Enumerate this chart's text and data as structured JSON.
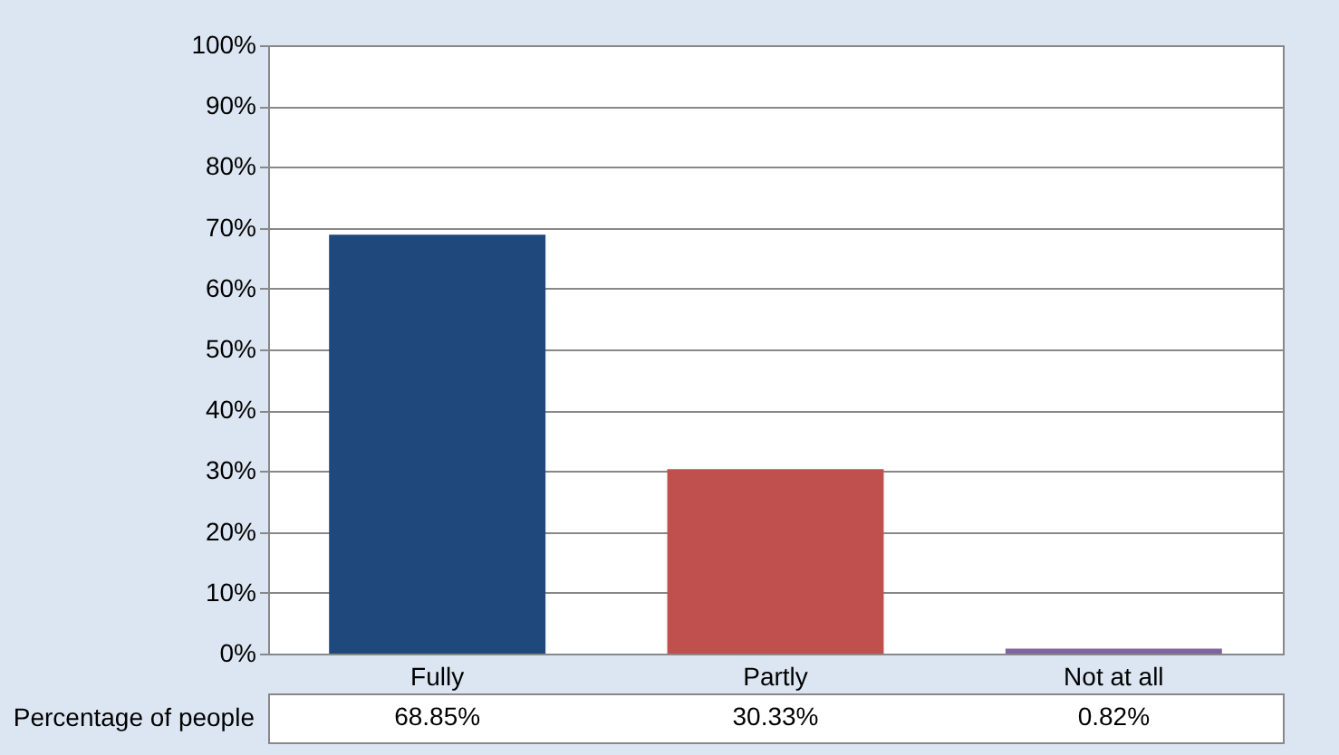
{
  "chart_data": {
    "type": "bar",
    "categories": [
      "Fully",
      "Partly",
      "Not at all"
    ],
    "series": [
      {
        "name": "Percentage of people",
        "colors": [
          "#1f497d",
          "#c0504d",
          "#8064a2"
        ],
        "values": [
          68.85,
          30.33,
          0.82
        ],
        "value_labels": [
          "68.85%",
          "30.33%",
          "0.82%"
        ]
      }
    ],
    "ylim": [
      0,
      100
    ],
    "yticks": [
      {
        "value": 0,
        "label": "0%"
      },
      {
        "value": 10,
        "label": "10%"
      },
      {
        "value": 20,
        "label": "20%"
      },
      {
        "value": 30,
        "label": "30%"
      },
      {
        "value": 40,
        "label": "40%"
      },
      {
        "value": 50,
        "label": "50%"
      },
      {
        "value": 60,
        "label": "60%"
      },
      {
        "value": 70,
        "label": "70%"
      },
      {
        "value": 80,
        "label": "80%"
      },
      {
        "value": 90,
        "label": "90%"
      },
      {
        "value": 100,
        "label": "100%"
      }
    ],
    "grid": "y"
  }
}
